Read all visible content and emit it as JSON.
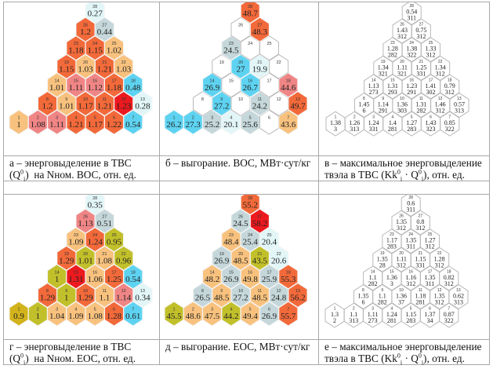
{
  "colors": {
    "O": "#f2693a",
    "L": "#f8c27e",
    "P": "#f08585",
    "R": "#ec1a1f",
    "C": "#5ed3f1",
    "I": "#e2f6f7",
    "G": "#c5d7da",
    "Y": "#c2c02a",
    "D": "#d3b31c",
    "W": "#ffffff"
  },
  "panels": [
    {
      "id": "a",
      "kind": "color",
      "cells": [
        {
          "n": "1",
          "v": "1",
          "c": "L"
        },
        {
          "n": "2",
          "v": "1.08",
          "c": "P"
        },
        {
          "n": "3",
          "v": "1.11",
          "c": "P"
        },
        {
          "n": "4",
          "v": "1.21",
          "c": "O"
        },
        {
          "n": "5",
          "v": "1.17",
          "c": "O"
        },
        {
          "n": "6",
          "v": "1.22",
          "c": "O"
        },
        {
          "n": "7",
          "v": "0.54",
          "c": "C"
        },
        {
          "n": "8",
          "v": "1.2",
          "c": "O"
        },
        {
          "n": "9",
          "v": "1.01",
          "c": "L"
        },
        {
          "n": "10",
          "v": "1.17",
          "c": "O"
        },
        {
          "n": "11",
          "v": "1.21",
          "c": "O"
        },
        {
          "n": "12",
          "v": "1.23",
          "c": "R"
        },
        {
          "n": "13",
          "v": "0.28",
          "c": "I"
        },
        {
          "n": "14",
          "v": "1.01",
          "c": "L"
        },
        {
          "n": "15",
          "v": "1.11",
          "c": "P"
        },
        {
          "n": "16",
          "v": "1.12",
          "c": "P"
        },
        {
          "n": "17",
          "v": "1.18",
          "c": "O"
        },
        {
          "n": "18",
          "v": "0.48",
          "c": "C"
        },
        {
          "n": "19",
          "v": "1.15",
          "c": "O"
        },
        {
          "n": "20",
          "v": "1.03",
          "c": "L"
        },
        {
          "n": "21",
          "v": "1.21",
          "c": "O"
        },
        {
          "n": "22",
          "v": "1.03",
          "c": "L"
        },
        {
          "n": "23",
          "v": "1.18",
          "c": "O"
        },
        {
          "n": "24",
          "v": "1.15",
          "c": "O"
        },
        {
          "n": "25",
          "v": "1.02",
          "c": "L"
        },
        {
          "n": "26",
          "v": "1.2",
          "c": "O"
        },
        {
          "n": "27",
          "v": "0.44",
          "c": "G"
        },
        {
          "n": "28",
          "v": "0.27",
          "c": "I"
        }
      ]
    },
    {
      "id": "b",
      "kind": "color",
      "cells": [
        {
          "n": "1",
          "v": "26.2",
          "c": "C"
        },
        {
          "n": "2",
          "v": "27.3",
          "c": "C"
        },
        {
          "n": "3",
          "v": "25.2",
          "c": "G"
        },
        {
          "n": "4",
          "v": "20.1",
          "c": "I"
        },
        {
          "n": "5",
          "v": "25.6",
          "c": "G"
        },
        {
          "n": "6",
          "v": "",
          "c": "W"
        },
        {
          "n": "7",
          "v": "43.6",
          "c": "L"
        },
        {
          "n": "8",
          "v": "",
          "c": "W"
        },
        {
          "n": "9",
          "v": "27.2",
          "c": "C"
        },
        {
          "n": "10",
          "v": "",
          "c": "W"
        },
        {
          "n": "11",
          "v": "24.2",
          "c": "G"
        },
        {
          "n": "12",
          "v": "",
          "c": "W"
        },
        {
          "n": "13",
          "v": "49.7",
          "c": "O"
        },
        {
          "n": "14",
          "v": "26.9",
          "c": "C"
        },
        {
          "n": "15",
          "v": "",
          "c": "W"
        },
        {
          "n": "16",
          "v": "26.7",
          "c": "C"
        },
        {
          "n": "17",
          "v": "",
          "c": "W"
        },
        {
          "n": "18",
          "v": "44.6",
          "c": "P"
        },
        {
          "n": "19",
          "v": "",
          "c": "W"
        },
        {
          "n": "20",
          "v": "27",
          "c": "C"
        },
        {
          "n": "21",
          "v": "19.9",
          "c": "I"
        },
        {
          "n": "22",
          "v": "",
          "c": "W"
        },
        {
          "n": "23",
          "v": "24.5",
          "c": "G"
        },
        {
          "n": "24",
          "v": "",
          "c": "W"
        },
        {
          "n": "25",
          "v": "",
          "c": "W"
        },
        {
          "n": "26",
          "v": "",
          "c": "W"
        },
        {
          "n": "27",
          "v": "48.3",
          "c": "O"
        },
        {
          "n": "28",
          "v": "48.7",
          "c": "O"
        }
      ]
    },
    {
      "id": "c",
      "kind": "white",
      "cells": [
        {
          "n": "1",
          "v": "1.38",
          "w": "3"
        },
        {
          "n": "2",
          "v": "1.26",
          "w": "313"
        },
        {
          "n": "3",
          "v": "1.24",
          "w": "331"
        },
        {
          "n": "4",
          "v": "1.4",
          "w": "281"
        },
        {
          "n": "5",
          "v": "1.27",
          "w": "283"
        },
        {
          "n": "6",
          "v": "1.43",
          "w": "323"
        },
        {
          "n": "7",
          "v": "0.85",
          "w": "322"
        },
        {
          "n": "8",
          "v": "1.45",
          "w": "6"
        },
        {
          "n": "9",
          "v": "1.14",
          "w": "291"
        },
        {
          "n": "10",
          "v": "1.36",
          "w": "303"
        },
        {
          "n": "11",
          "v": "1.31",
          "w": "282"
        },
        {
          "n": "12",
          "v": "1.46",
          "w": "312"
        },
        {
          "n": "13",
          "v": "0.57",
          "w": "313"
        },
        {
          "n": "14",
          "v": "1.13",
          "w": "273"
        },
        {
          "n": "15",
          "v": "1.31",
          "w": "293"
        },
        {
          "n": "16",
          "v": "1.23",
          "w": "291"
        },
        {
          "n": "17",
          "v": "1.41",
          "w": "302"
        },
        {
          "n": "18",
          "v": "0.79",
          "w": "312"
        },
        {
          "n": "19",
          "v": "1.34",
          "w": "321"
        },
        {
          "n": "20",
          "v": "1.11",
          "w": "321"
        },
        {
          "n": "21",
          "v": "1.25",
          "w": "331"
        },
        {
          "n": "22",
          "v": "1.34",
          "w": "312"
        },
        {
          "n": "23",
          "v": "1.28",
          "w": "282"
        },
        {
          "n": "24",
          "v": "1.38",
          "w": "322"
        },
        {
          "n": "25",
          "v": "1.33",
          "w": "312"
        },
        {
          "n": "26",
          "v": "1.43",
          "w": "312"
        },
        {
          "n": "27",
          "v": "0.75",
          "w": "312"
        },
        {
          "n": "28",
          "v": "0.54",
          "w": "311"
        }
      ]
    },
    {
      "id": "d",
      "kind": "color",
      "cells": [
        {
          "n": "1",
          "v": "0.9",
          "c": "D"
        },
        {
          "n": "2",
          "v": "1",
          "c": "Y"
        },
        {
          "n": "3",
          "v": "1.04",
          "c": "L"
        },
        {
          "n": "4",
          "v": "1.09",
          "c": "L"
        },
        {
          "n": "5",
          "v": "1.08",
          "c": "L"
        },
        {
          "n": "6",
          "v": "1.28",
          "c": "O"
        },
        {
          "n": "7",
          "v": "0.61",
          "c": "C"
        },
        {
          "n": "8",
          "v": "1.29",
          "c": "O"
        },
        {
          "n": "9",
          "v": "1",
          "c": "Y"
        },
        {
          "n": "10",
          "v": "1.29",
          "c": "O"
        },
        {
          "n": "11",
          "v": "1.1",
          "c": "L"
        },
        {
          "n": "12",
          "v": "1.14",
          "c": "P"
        },
        {
          "n": "13",
          "v": "0.34",
          "c": "I"
        },
        {
          "n": "14",
          "v": "1",
          "c": "Y"
        },
        {
          "n": "15",
          "v": "1.31",
          "c": "R"
        },
        {
          "n": "16",
          "v": "1.06",
          "c": "L"
        },
        {
          "n": "17",
          "v": "1.25",
          "c": "O"
        },
        {
          "n": "18",
          "v": "0.54",
          "c": "C"
        },
        {
          "n": "19",
          "v": "1.29",
          "c": "O"
        },
        {
          "n": "20",
          "v": "1.01",
          "c": "Y"
        },
        {
          "n": "21",
          "v": "1.08",
          "c": "L"
        },
        {
          "n": "22",
          "v": "0.96",
          "c": "Y"
        },
        {
          "n": "23",
          "v": "1.09",
          "c": "L"
        },
        {
          "n": "24",
          "v": "1.24",
          "c": "O"
        },
        {
          "n": "25",
          "v": "0.95",
          "c": "Y"
        },
        {
          "n": "26",
          "v": "1.13",
          "c": "P"
        },
        {
          "n": "27",
          "v": "0.51",
          "c": "G"
        },
        {
          "n": "28",
          "v": "0.35",
          "c": "I"
        }
      ]
    },
    {
      "id": "e",
      "kind": "color",
      "cells": [
        {
          "n": "1",
          "v": "45.5",
          "c": "Y"
        },
        {
          "n": "2",
          "v": "48.6",
          "c": "L"
        },
        {
          "n": "3",
          "v": "47.5",
          "c": "L"
        },
        {
          "n": "4",
          "v": "44.2",
          "c": "Y"
        },
        {
          "n": "5",
          "v": "49.4",
          "c": "L"
        },
        {
          "n": "6",
          "v": "26.9",
          "c": "G"
        },
        {
          "n": "7",
          "v": "55.7",
          "c": "O"
        },
        {
          "n": "8",
          "v": "26.5",
          "c": "G"
        },
        {
          "n": "9",
          "v": "48.5",
          "c": "L"
        },
        {
          "n": "10",
          "v": "27.2",
          "c": "G"
        },
        {
          "n": "11",
          "v": "48.5",
          "c": "L"
        },
        {
          "n": "12",
          "v": "24.8",
          "c": "G"
        },
        {
          "n": "13",
          "v": "56.2",
          "c": "O"
        },
        {
          "n": "14",
          "v": "48.2",
          "c": "L"
        },
        {
          "n": "15",
          "v": "26.9",
          "c": "G"
        },
        {
          "n": "16",
          "v": "49.8",
          "c": "L"
        },
        {
          "n": "17",
          "v": "25.9",
          "c": "G"
        },
        {
          "n": "18",
          "v": "55.3",
          "c": "O"
        },
        {
          "n": "19",
          "v": "26.9",
          "c": "G"
        },
        {
          "n": "20",
          "v": "48.5",
          "c": "L"
        },
        {
          "n": "21",
          "v": "43.5",
          "c": "Y"
        },
        {
          "n": "22",
          "v": "20.6",
          "c": "I"
        },
        {
          "n": "23",
          "v": "48.4",
          "c": "L"
        },
        {
          "n": "24",
          "v": "25.4",
          "c": "G"
        },
        {
          "n": "25",
          "v": "20.4",
          "c": "I"
        },
        {
          "n": "26",
          "v": "24.5",
          "c": "G"
        },
        {
          "n": "27",
          "v": "58.2",
          "c": "R"
        },
        {
          "n": "28",
          "v": "55.2",
          "c": "O"
        }
      ]
    },
    {
      "id": "f",
      "kind": "white",
      "cells": [
        {
          "n": "1",
          "v": "1.3",
          "w": "2"
        },
        {
          "n": "2",
          "v": "1.1",
          "w": "313"
        },
        {
          "n": "3",
          "v": "1.11",
          "w": "273"
        },
        {
          "n": "4",
          "v": "1.24",
          "w": "281"
        },
        {
          "n": "5",
          "v": "1.15",
          "w": "283"
        },
        {
          "n": "6",
          "v": "1.37",
          "w": "34"
        },
        {
          "n": "7",
          "v": "0.87",
          "w": "322"
        },
        {
          "n": "8",
          "v": "1.35",
          "w": "6"
        },
        {
          "n": "9",
          "v": "1.1",
          "w": "282"
        },
        {
          "n": "10",
          "v": "1.36",
          "w": "37"
        },
        {
          "n": "11",
          "v": "1.18",
          "w": "281"
        },
        {
          "n": "12",
          "v": "1.35",
          "w": "312"
        },
        {
          "n": "13",
          "v": "0.62",
          "w": "313"
        },
        {
          "n": "14",
          "v": "1.1",
          "w": "282"
        },
        {
          "n": "15",
          "v": "1.36",
          "w": "3"
        },
        {
          "n": "16",
          "v": "1.16",
          "w": "312"
        },
        {
          "n": "17",
          "v": "1.35",
          "w": "311"
        },
        {
          "n": "18",
          "v": "0.82",
          "w": "312"
        },
        {
          "n": "19",
          "v": "1.35",
          "w": "28"
        },
        {
          "n": "20",
          "v": "1.11",
          "w": "312"
        },
        {
          "n": "21",
          "v": "1.15",
          "w": "331"
        },
        {
          "n": "22",
          "v": "1.28",
          "w": "312"
        },
        {
          "n": "23",
          "v": "1.17",
          "w": "283"
        },
        {
          "n": "24",
          "v": "1.35",
          "w": "311"
        },
        {
          "n": "25",
          "v": "1.27",
          "w": "312"
        },
        {
          "n": "26",
          "v": "1.35",
          "w": "312"
        },
        {
          "n": "27",
          "v": "0.8",
          "w": "312"
        },
        {
          "n": "28",
          "v": "0.6",
          "w": "311"
        }
      ]
    }
  ],
  "captions": [
    [
      [
        {
          "t": "а – энерговыделение в ТВС"
        }
      ],
      [
        {
          "t": "(Q"
        },
        {
          "t": "0",
          "s": "sup"
        },
        {
          "t": "i",
          "s": "sub"
        },
        {
          "t": ")  на Nном. ВОС, отн. ед."
        }
      ]
    ],
    [
      [
        {
          "t": "б – выгорание. ВОС, МВт·сут/кг"
        }
      ]
    ],
    [
      [
        {
          "t": "в – максимальное энерговыделение"
        }
      ],
      [
        {
          "t": "твэла в ТВС (Kk"
        },
        {
          "t": "0",
          "s": "sup"
        },
        {
          "t": "i",
          "s": "sub"
        },
        {
          "t": " · Q"
        },
        {
          "t": "0",
          "s": "sup"
        },
        {
          "t": "i",
          "s": "sub"
        },
        {
          "t": "), отн. ед."
        }
      ]
    ],
    [
      [
        {
          "t": "г – энерговыделение в ТВС"
        }
      ],
      [
        {
          "t": "(Q"
        },
        {
          "t": "0",
          "s": "sup"
        },
        {
          "t": "i",
          "s": "sub"
        },
        {
          "t": ")  на Nном. ЕОС, отн. ед."
        }
      ]
    ],
    [
      [
        {
          "t": "д – выгорание. ЕОС, МВт·сут/кг"
        }
      ]
    ],
    [
      [
        {
          "t": "е – максимальное энерговыделение"
        }
      ],
      [
        {
          "t": "твэла в ТВС (Kk"
        },
        {
          "t": "0",
          "s": "sup"
        },
        {
          "t": "i",
          "s": "sub"
        },
        {
          "t": " · Q"
        },
        {
          "t": "0",
          "s": "sup"
        },
        {
          "t": "i",
          "s": "sub"
        },
        {
          "t": "), отн. ед."
        }
      ]
    ]
  ]
}
